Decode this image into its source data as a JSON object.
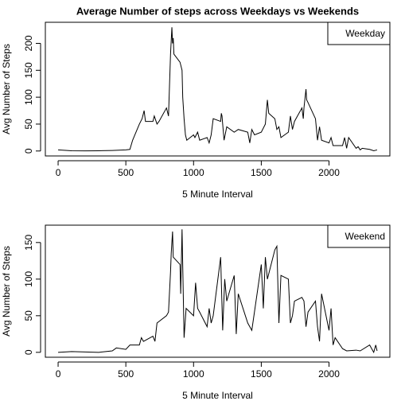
{
  "chart_data": [
    {
      "type": "line",
      "title": "Average Number of steps across Weekdays vs Weekends",
      "x_label": "5 Minute Interval",
      "y_label": "Avg Number of Steps",
      "x": [
        0,
        100,
        200,
        300,
        400,
        500,
        530,
        550,
        600,
        620,
        635,
        645,
        700,
        710,
        730,
        745,
        800,
        815,
        830,
        835,
        840,
        845,
        850,
        855,
        900,
        915,
        920,
        930,
        940,
        950,
        1000,
        1010,
        1030,
        1045,
        1100,
        1115,
        1130,
        1145,
        1200,
        1205,
        1210,
        1225,
        1245,
        1300,
        1330,
        1400,
        1415,
        1430,
        1450,
        1500,
        1530,
        1545,
        1555,
        1600,
        1615,
        1630,
        1645,
        1700,
        1715,
        1730,
        1745,
        1800,
        1810,
        1815,
        1830,
        1835,
        1845,
        1900,
        1915,
        1930,
        1945,
        2000,
        2015,
        2030,
        2100,
        2115,
        2130,
        2145,
        2200,
        2215,
        2230,
        2245,
        2300,
        2330,
        2355
      ],
      "series": [
        {
          "name": "Weekday",
          "color": "#000000",
          "values": [
            2,
            0.5,
            0.3,
            0.5,
            1,
            2,
            3,
            20,
            50,
            60,
            75,
            55,
            55,
            65,
            50,
            55,
            80,
            65,
            180,
            205,
            230,
            200,
            210,
            180,
            165,
            150,
            100,
            60,
            30,
            20,
            30,
            25,
            35,
            20,
            25,
            15,
            30,
            60,
            55,
            70,
            65,
            20,
            45,
            35,
            40,
            35,
            15,
            40,
            30,
            35,
            50,
            95,
            70,
            60,
            40,
            45,
            25,
            35,
            65,
            40,
            55,
            80,
            60,
            80,
            115,
            95,
            90,
            60,
            20,
            45,
            20,
            15,
            25,
            10,
            10,
            25,
            5,
            25,
            5,
            8,
            2,
            5,
            3,
            0.5,
            2
          ]
        }
      ],
      "xlim": [
        -94.2,
        2449.2
      ],
      "ylim": [
        -9.2,
        239.2
      ],
      "xticks": [
        0,
        500,
        1000,
        1500,
        2000
      ],
      "yticks": [
        0,
        50,
        100,
        150,
        200
      ],
      "legend": "topright"
    },
    {
      "type": "line",
      "x_label": "5 Minute Interval",
      "y_label": "Avg Number of Steps",
      "x": [
        0,
        100,
        200,
        300,
        400,
        430,
        500,
        530,
        600,
        615,
        630,
        700,
        715,
        730,
        800,
        815,
        830,
        835,
        845,
        850,
        900,
        905,
        915,
        930,
        945,
        1000,
        1015,
        1030,
        1045,
        1100,
        1115,
        1130,
        1145,
        1200,
        1215,
        1230,
        1245,
        1300,
        1315,
        1330,
        1400,
        1430,
        1500,
        1515,
        1530,
        1545,
        1600,
        1615,
        1630,
        1645,
        1700,
        1715,
        1730,
        1745,
        1800,
        1815,
        1830,
        1845,
        1900,
        1915,
        1930,
        1945,
        2000,
        2015,
        2030,
        2045,
        2100,
        2130,
        2200,
        2230,
        2300,
        2315,
        2330,
        2345,
        2355
      ],
      "series": [
        {
          "name": "Weekend",
          "color": "#000000",
          "values": [
            0,
            1,
            0.5,
            0,
            2,
            6,
            4,
            10,
            10,
            20,
            15,
            22,
            15,
            40,
            50,
            55,
            110,
            135,
            165,
            130,
            120,
            80,
            168,
            20,
            60,
            50,
            95,
            60,
            55,
            35,
            60,
            40,
            50,
            130,
            30,
            100,
            70,
            105,
            25,
            80,
            40,
            30,
            120,
            60,
            130,
            100,
            140,
            145,
            40,
            105,
            100,
            40,
            50,
            70,
            75,
            70,
            35,
            55,
            70,
            35,
            15,
            80,
            30,
            60,
            10,
            20,
            5,
            2,
            3,
            2,
            10,
            5,
            0,
            10,
            2
          ]
        }
      ],
      "xlim": [
        -94.2,
        2449.2
      ],
      "ylim": [
        -6.7,
        173.7
      ],
      "xticks": [
        0,
        500,
        1000,
        1500,
        2000
      ],
      "yticks": [
        0,
        50,
        100,
        150
      ],
      "legend": "topright"
    }
  ]
}
